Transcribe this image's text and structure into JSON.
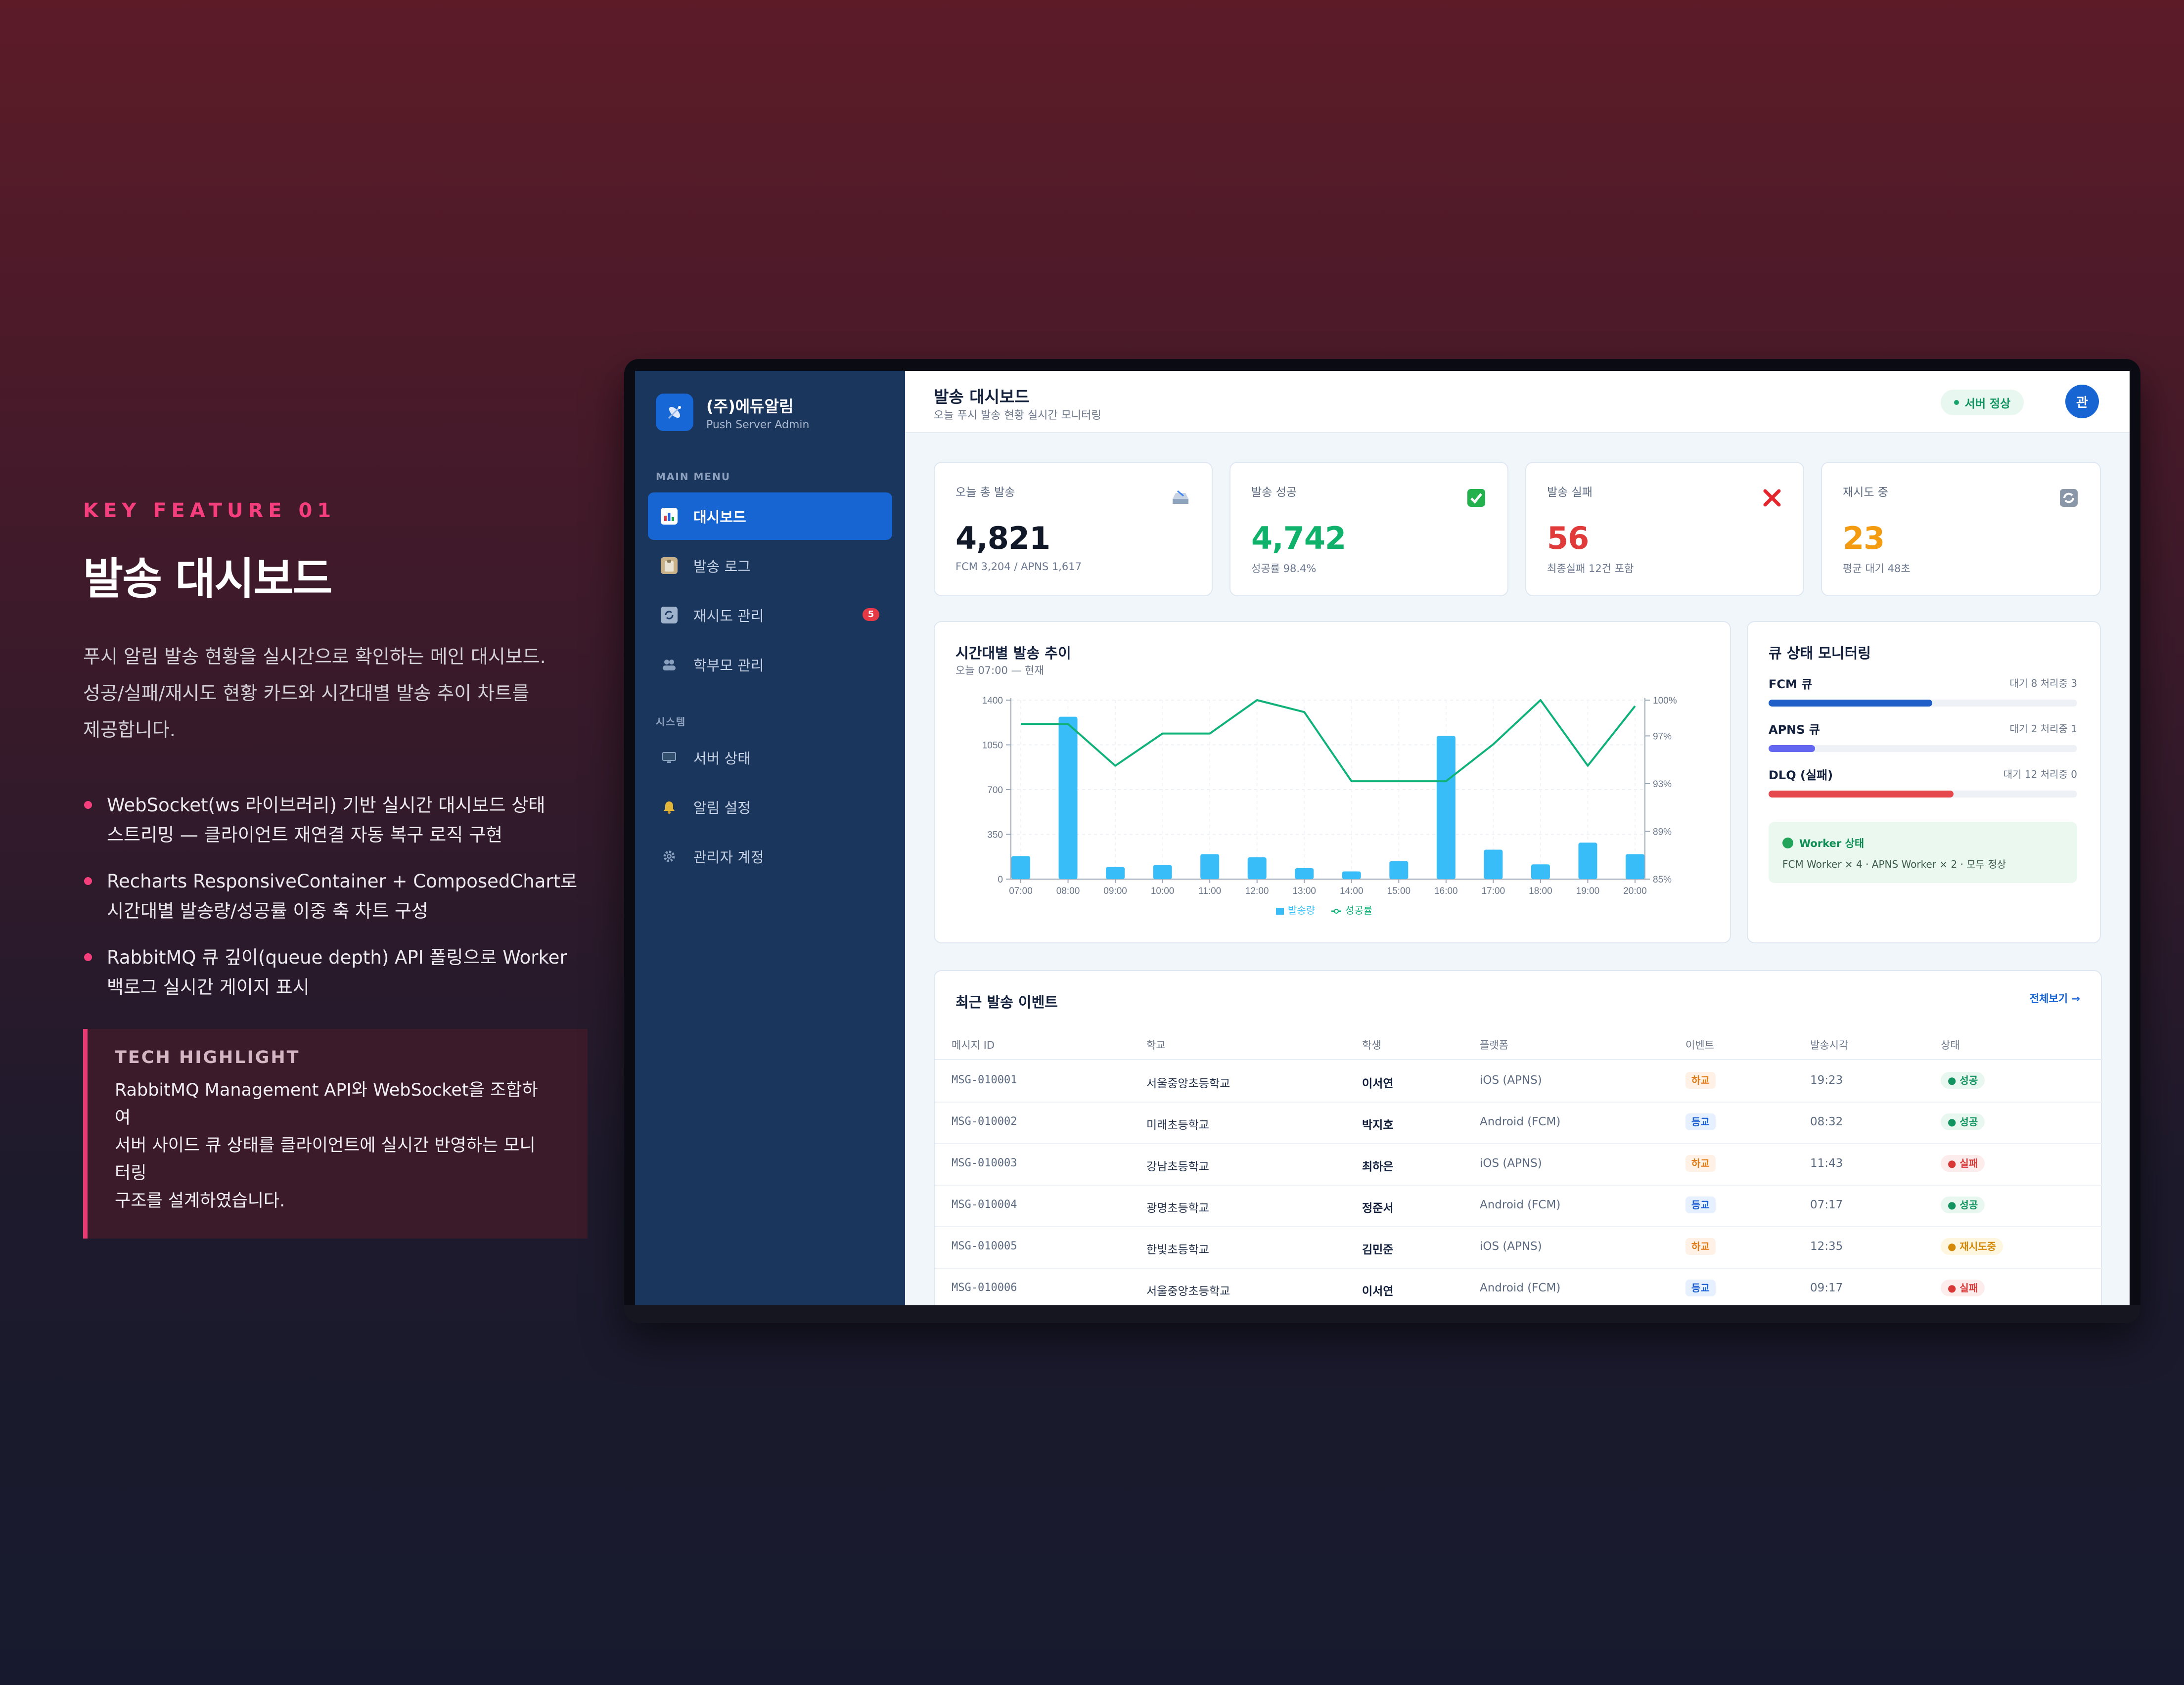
{
  "feature": {
    "kicker": "KEY FEATURE 01",
    "title": "발송 대시보드",
    "description_lines": [
      "푸시 알림 발송 현황을 실시간으로 확인하는 메인 대시보드.",
      "성공/실패/재시도 현황 카드와 시간대별 발송 추이 차트를",
      "제공합니다."
    ],
    "bullets": [
      [
        "WebSocket(ws 라이브러리) 기반 실시간 대시보드 상태",
        "스트리밍 — 클라이언트 재연결 자동 복구 로직 구현"
      ],
      [
        "Recharts ResponsiveContainer + ComposedChart로",
        "시간대별 발송량/성공률 이중 축 차트 구성"
      ],
      [
        "RabbitMQ 큐 깊이(queue depth) API 폴링으로 Worker",
        "백로그 실시간 게이지 표시"
      ]
    ],
    "tech_label": "TECH HIGHLIGHT",
    "tech_lines": [
      "RabbitMQ Management API와 WebSocket을 조합하여",
      "서버 사이드 큐 상태를 클라이언트에 실시간 반영하는 모니터링",
      "구조를 설계하였습니다."
    ]
  },
  "sidebar": {
    "brand_title": "(주)에듀알림",
    "brand_sub": "Push Server Admin",
    "section_main": "MAIN MENU",
    "section_system": "시스템",
    "items": [
      {
        "label": "대시보드",
        "icon": "bar-chart-icon"
      },
      {
        "label": "발송 로그",
        "icon": "clipboard-icon"
      },
      {
        "label": "재시도 관리",
        "icon": "retry-icon",
        "badge": "5"
      },
      {
        "label": "학부모 관리",
        "icon": "users-icon"
      }
    ],
    "system_items": [
      {
        "label": "서버 상태",
        "icon": "monitor-icon"
      },
      {
        "label": "알림 설정",
        "icon": "bell-icon"
      },
      {
        "label": "관리자 계정",
        "icon": "gear-icon"
      }
    ]
  },
  "header": {
    "title": "발송 대시보드",
    "subtitle": "오늘 푸시 발송 현황 실시간 모니터링",
    "status": "서버 정상",
    "avatar": "관"
  },
  "stats": [
    {
      "label": "오늘 총 발송",
      "value": "4,821",
      "sub": "FCM 3,204 / APNS 1,617",
      "icon": "tray-icon",
      "color": "#111827"
    },
    {
      "label": "발송 성공",
      "value": "4,742",
      "sub": "성공률 98.4%",
      "icon": "check-icon",
      "color": "#10b26b"
    },
    {
      "label": "발송 실패",
      "value": "56",
      "sub": "최종실패 12건 포함",
      "icon": "cross-icon",
      "color": "#e03a3a"
    },
    {
      "label": "재시도 중",
      "value": "23",
      "sub": "평균 대기 48초",
      "icon": "refresh-icon",
      "color": "#f39c12"
    }
  ],
  "chart_card": {
    "title": "시간대별 발송 추이",
    "subtitle": "오늘 07:00 — 현재"
  },
  "chart_data": {
    "type": "bar",
    "categories": [
      "07:00",
      "08:00",
      "09:00",
      "10:00",
      "11:00",
      "12:00",
      "13:00",
      "14:00",
      "15:00",
      "16:00",
      "17:00",
      "18:00",
      "19:00",
      "20:00"
    ],
    "series": [
      {
        "name": "발송량",
        "type": "bar",
        "axis": "left",
        "color": "#38bdf8",
        "values": [
          180,
          1270,
          95,
          110,
          195,
          170,
          85,
          60,
          140,
          1120,
          230,
          115,
          285,
          195
        ]
      },
      {
        "name": "성공률",
        "type": "line",
        "axis": "right",
        "color": "#10b27a",
        "values": [
          98,
          98,
          94.5,
          97.2,
          97.2,
          100,
          99,
          93.2,
          93.2,
          93.2,
          96.3,
          100,
          94.5,
          99.5
        ]
      }
    ],
    "left_axis": {
      "ticks": [
        0,
        350,
        700,
        1050,
        1400
      ],
      "ylim": [
        0,
        1400
      ]
    },
    "right_axis": {
      "ticks": [
        "85%",
        "89%",
        "93%",
        "97%",
        "100%"
      ],
      "ylim": [
        85,
        100
      ]
    },
    "legend_position": "bottom-center",
    "grid": true
  },
  "queue_card": {
    "title": "큐 상태 모니터링",
    "queues": [
      {
        "name": "FCM 큐",
        "meta": "대기 8 처리중 3",
        "fill": 0.53,
        "color": "#1f5fc7"
      },
      {
        "name": "APNS 큐",
        "meta": "대기 2 처리중 1",
        "fill": 0.15,
        "color": "#6366f1"
      },
      {
        "name": "DLQ (실패)",
        "meta": "대기 12 처리중 0",
        "fill": 0.6,
        "color": "#e5484d"
      }
    ],
    "worker_title": "Worker 상태",
    "worker_text": "FCM Worker × 4 · APNS Worker × 2 · 모두 정상"
  },
  "events": {
    "title": "최근 발송 이벤트",
    "view_all": "전체보기 →",
    "columns": [
      "메시지 ID",
      "학교",
      "학생",
      "플랫폼",
      "이벤트",
      "발송시각",
      "상태"
    ],
    "rows": [
      {
        "id": "MSG-010001",
        "school": "서울중앙초등학교",
        "student": "이서연",
        "platform": "iOS (APNS)",
        "event": "하교",
        "event_type": "hagyo",
        "time": "19:23",
        "status": "● 성공",
        "status_type": "ok"
      },
      {
        "id": "MSG-010002",
        "school": "미래초등학교",
        "student": "박지호",
        "platform": "Android (FCM)",
        "event": "등교",
        "event_type": "deunggyo",
        "time": "08:32",
        "status": "● 성공",
        "status_type": "ok"
      },
      {
        "id": "MSG-010003",
        "school": "강남초등학교",
        "student": "최하은",
        "platform": "iOS (APNS)",
        "event": "하교",
        "event_type": "hagyo",
        "time": "11:43",
        "status": "● 실패",
        "status_type": "fail"
      },
      {
        "id": "MSG-010004",
        "school": "광명초등학교",
        "student": "정준서",
        "platform": "Android (FCM)",
        "event": "등교",
        "event_type": "deunggyo",
        "time": "07:17",
        "status": "● 성공",
        "status_type": "ok"
      },
      {
        "id": "MSG-010005",
        "school": "한빛초등학교",
        "student": "김민준",
        "platform": "iOS (APNS)",
        "event": "하교",
        "event_type": "hagyo",
        "time": "12:35",
        "status": "● 재시도중",
        "status_type": "retry"
      },
      {
        "id": "MSG-010006",
        "school": "서울중앙초등학교",
        "student": "이서연",
        "platform": "Android (FCM)",
        "event": "등교",
        "event_type": "deunggyo",
        "time": "09:17",
        "status": "● 실패",
        "status_type": "fail"
      }
    ]
  }
}
